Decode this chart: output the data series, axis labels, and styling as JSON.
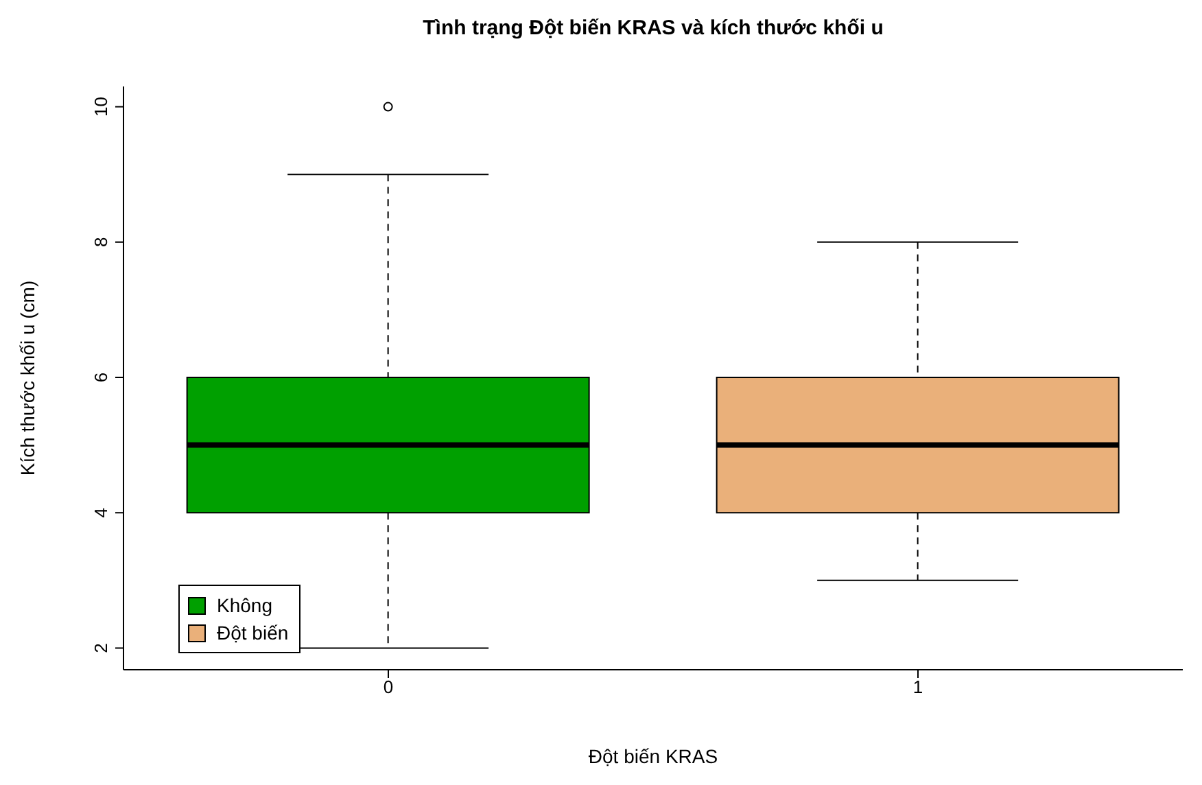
{
  "chart_data": {
    "type": "box",
    "title": "Tình trạng Đột biến KRAS và kích thước khối u",
    "xlabel": "Đột biến KRAS",
    "ylabel": "Kích thước khối u (cm)",
    "categories": [
      "0",
      "1"
    ],
    "series": [
      {
        "name": "Không",
        "color": "#00a000",
        "boxes": [
          {
            "low": 2,
            "q1": 4,
            "median": 5,
            "q3": 6,
            "high": 9,
            "outliers": [
              10
            ]
          },
          null
        ]
      },
      {
        "name": "Đột biến",
        "color": "#eab07a",
        "boxes": [
          null,
          {
            "low": 3,
            "q1": 4,
            "median": 5,
            "q3": 6,
            "high": 8
          }
        ]
      }
    ],
    "ylim": [
      1.68,
      10.3
    ],
    "yticks": [
      2,
      4,
      6,
      8,
      10
    ],
    "legend": "bottom left"
  }
}
